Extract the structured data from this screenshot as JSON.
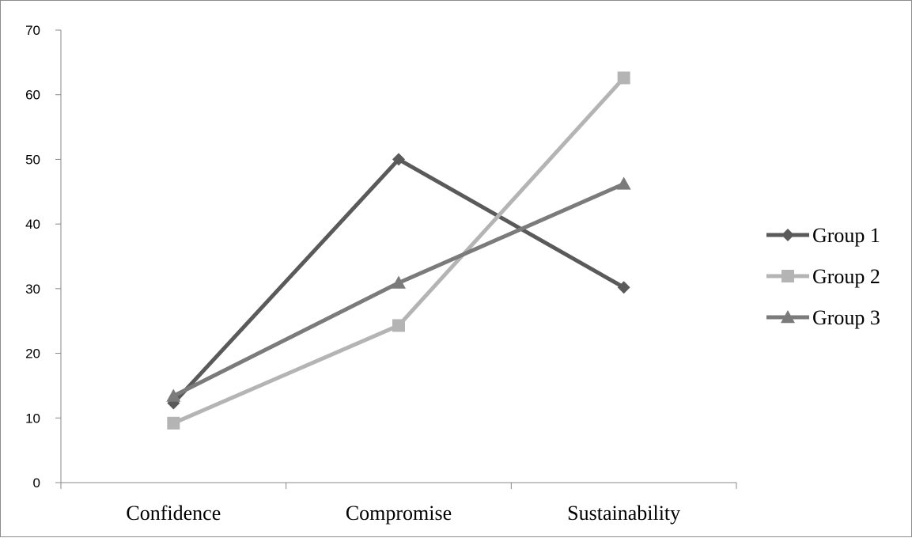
{
  "chart_data": {
    "type": "line",
    "categories": [
      "Confidence",
      "Compromise",
      "Sustainability"
    ],
    "series": [
      {
        "name": "Group 1",
        "values": [
          12.3,
          50,
          30.2
        ],
        "color": "#5a5a5a",
        "marker": "diamond"
      },
      {
        "name": "Group 2",
        "values": [
          9.2,
          24.3,
          62.6
        ],
        "color": "#b4b4b4",
        "marker": "square"
      },
      {
        "name": "Group 3",
        "values": [
          13.4,
          30.9,
          46.2
        ],
        "color": "#7b7b7b",
        "marker": "triangle"
      }
    ],
    "ylim": [
      0,
      70
    ],
    "yticks": [
      "0",
      "10",
      "20",
      "30",
      "40",
      "50",
      "60",
      "70"
    ],
    "grid": false,
    "legend_position": "right"
  }
}
